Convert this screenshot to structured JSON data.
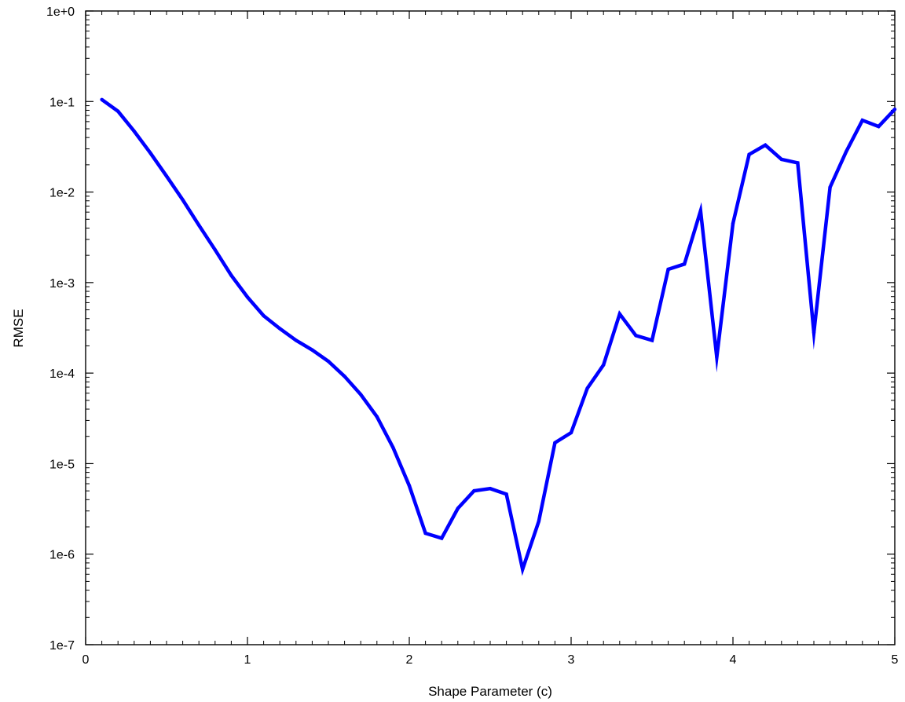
{
  "chart_data": {
    "type": "line",
    "title": "",
    "xlabel": "Shape Parameter (c)",
    "ylabel": "RMSE",
    "xlim": [
      0,
      5
    ],
    "ylim": [
      1e-07,
      1
    ],
    "yscale": "log",
    "grid": false,
    "legend": "none",
    "x_ticks": [
      0,
      1,
      2,
      3,
      4,
      5
    ],
    "x_tick_labels": [
      "0",
      "1",
      "2",
      "3",
      "4",
      "5"
    ],
    "y_ticks": [
      1e-07,
      1e-06,
      1e-05,
      0.0001,
      0.001,
      0.01,
      0.1,
      1
    ],
    "y_tick_labels": [
      "1e-7",
      "1e-6",
      "1e-5",
      "1e-4",
      "1e-3",
      "1e-2",
      "1e-1",
      "1e+0"
    ],
    "series": [
      {
        "color": "#0000ff",
        "x": [
          0.1,
          0.2,
          0.3,
          0.4,
          0.5,
          0.6,
          0.7,
          0.8,
          0.9,
          1.0,
          1.1,
          1.2,
          1.3,
          1.4,
          1.5,
          1.6,
          1.7,
          1.8,
          1.9,
          2.0,
          2.1,
          2.2,
          2.3,
          2.4,
          2.5,
          2.6,
          2.7,
          2.8,
          2.9,
          3.0,
          3.1,
          3.2,
          3.3,
          3.4,
          3.5,
          3.6,
          3.7,
          3.8,
          3.9,
          4.0,
          4.1,
          4.2,
          4.3,
          4.4,
          4.5,
          4.6,
          4.7,
          4.8,
          4.9,
          5.0
        ],
        "values": [
          0.105,
          0.078,
          0.047,
          0.027,
          0.015,
          0.0082,
          0.0043,
          0.0023,
          0.0012,
          0.00069,
          0.00043,
          0.00031,
          0.00023,
          0.00018,
          0.000135,
          9.2e-05,
          5.8e-05,
          3.3e-05,
          1.5e-05,
          5.7e-06,
          1.7e-06,
          1.5e-06,
          3.2e-06,
          5e-06,
          5.3e-06,
          4.6e-06,
          6.8e-07,
          2.3e-06,
          1.7e-05,
          2.2e-05,
          6.8e-05,
          0.000123,
          0.00045,
          0.00026,
          0.00023,
          0.0014,
          0.0016,
          0.0062,
          0.00015,
          0.0045,
          0.026,
          0.033,
          0.023,
          0.021,
          0.00028,
          0.0113,
          0.028,
          0.062,
          0.053,
          0.082
        ]
      }
    ]
  }
}
